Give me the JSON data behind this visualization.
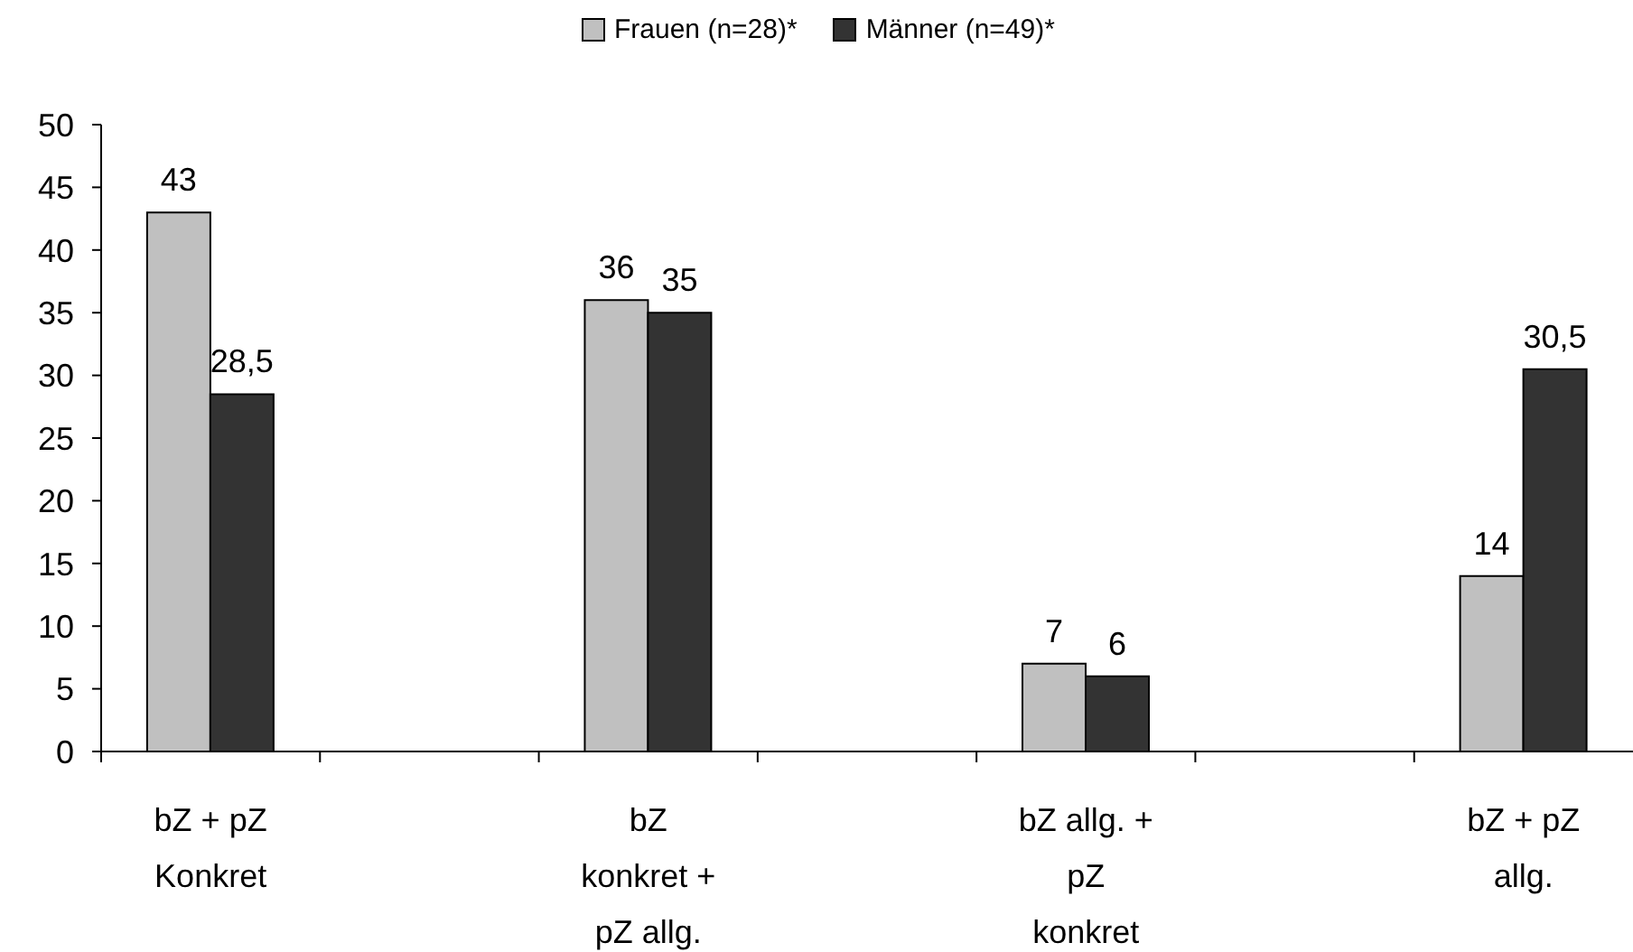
{
  "chart_data": {
    "type": "bar",
    "categories": [
      "bZ + pZ\nKonkret",
      null,
      "bZ\nkonkret +\npZ allg.",
      null,
      "bZ allg. +\npZ\nkonkret",
      null,
      "bZ + pZ\nallg."
    ],
    "series": [
      {
        "name": "Frauen (n=28)*",
        "color": "#c0c0c0",
        "values": [
          43,
          null,
          36,
          null,
          7,
          null,
          14
        ],
        "value_labels": [
          "43",
          null,
          "36",
          null,
          "7",
          null,
          "14"
        ]
      },
      {
        "name": "Männer (n=49)*",
        "color": "#333333",
        "values": [
          28.5,
          null,
          35,
          null,
          6,
          null,
          30.5
        ],
        "value_labels": [
          "28,5",
          null,
          "35",
          null,
          "6",
          null,
          "30,5"
        ]
      }
    ],
    "ylim": [
      0,
      50
    ],
    "yticks": [
      0,
      5,
      10,
      15,
      20,
      25,
      30,
      35,
      40,
      45,
      50
    ],
    "legend": "top"
  }
}
